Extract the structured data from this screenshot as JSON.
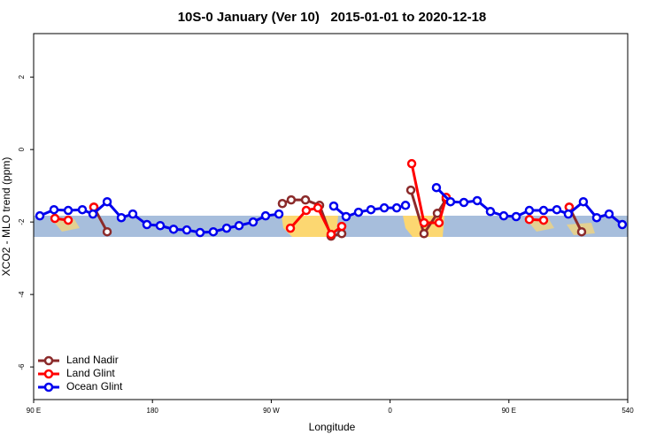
{
  "chart_data": {
    "type": "line",
    "title": "10S-0 January (Ver 10)   2015-01-01 to 2020-12-18",
    "xlabel": "Longitude",
    "ylabel": "XCO2 - MLO trend (ppm)",
    "xlim": [
      90,
      540
    ],
    "xticks": [
      {
        "value": 90,
        "label": "90 E"
      },
      180,
      {
        "value": 270,
        "label": "90 W"
      },
      {
        "value": 360,
        "label": "0"
      },
      {
        "value": 450,
        "label": "90 E"
      },
      540
    ],
    "ylim": [
      -6.9,
      3.2
    ],
    "yticks": [
      2,
      0,
      -2,
      -4,
      -6
    ],
    "legend": "bottom-left",
    "series": [
      {
        "name": "Land Nadir",
        "color": "#8b2a2a",
        "x": [
          135.6,
          145.7,
          null,
          278.4,
          285.1,
          295.9,
          306.6,
          315.3,
          323.4,
          null,
          375.7,
          385.7,
          395.8,
          402.5,
          null,
          495.7,
          505.1
        ],
        "values": [
          -1.59,
          -2.27,
          null,
          -1.49,
          -1.39,
          -1.39,
          -1.54,
          -2.39,
          -2.32,
          null,
          -1.12,
          -2.32,
          -1.76,
          -1.37,
          null,
          -1.59,
          -2.27
        ]
      },
      {
        "name": "Land Glint",
        "color": "#ff0000",
        "x": [
          106.1,
          116.2,
          null,
          135.6,
          null,
          284.5,
          296.5,
          305.3,
          315.3,
          323.4,
          null,
          376.4,
          385.7,
          397.1,
          402.5,
          null,
          465.5,
          476.3,
          null,
          495.7
        ],
        "values": [
          -1.9,
          -1.95,
          null,
          -1.59,
          null,
          -2.17,
          -1.68,
          -1.61,
          -2.34,
          -2.12,
          null,
          -0.39,
          -2.02,
          -2.02,
          -1.32,
          null,
          -1.93,
          -1.95,
          null,
          -1.59
        ]
      },
      {
        "name": "Ocean Glint",
        "color": "#0000ee",
        "x": [
          94.7,
          105.4,
          116.2,
          126.9,
          134.9,
          145.7,
          156.4,
          165.1,
          175.8,
          185.9,
          196.0,
          206.0,
          216.1,
          226.1,
          236.2,
          245.6,
          256.3,
          265.7,
          275.8,
          null,
          317.3,
          326.7,
          336.1,
          345.5,
          355.6,
          365.0,
          371.7,
          null,
          395.1,
          405.8,
          415.9,
          426.0,
          436.0,
          446.1,
          455.5,
          465.5,
          476.3,
          486.3,
          495.0,
          506.4,
          516.5,
          525.9,
          535.9
        ],
        "values": [
          -1.83,
          -1.66,
          -1.68,
          -1.66,
          -1.78,
          -1.44,
          -1.88,
          -1.78,
          -2.07,
          -2.1,
          -2.2,
          -2.22,
          -2.29,
          -2.27,
          -2.17,
          -2.1,
          -2.0,
          -1.83,
          -1.78,
          null,
          -1.56,
          -1.85,
          -1.73,
          -1.66,
          -1.61,
          -1.61,
          -1.54,
          null,
          -1.05,
          -1.44,
          -1.46,
          -1.41,
          -1.71,
          -1.83,
          -1.85,
          -1.68,
          -1.68,
          -1.66,
          -1.78,
          -1.44,
          -1.88,
          -1.78,
          -2.07
        ]
      }
    ]
  }
}
